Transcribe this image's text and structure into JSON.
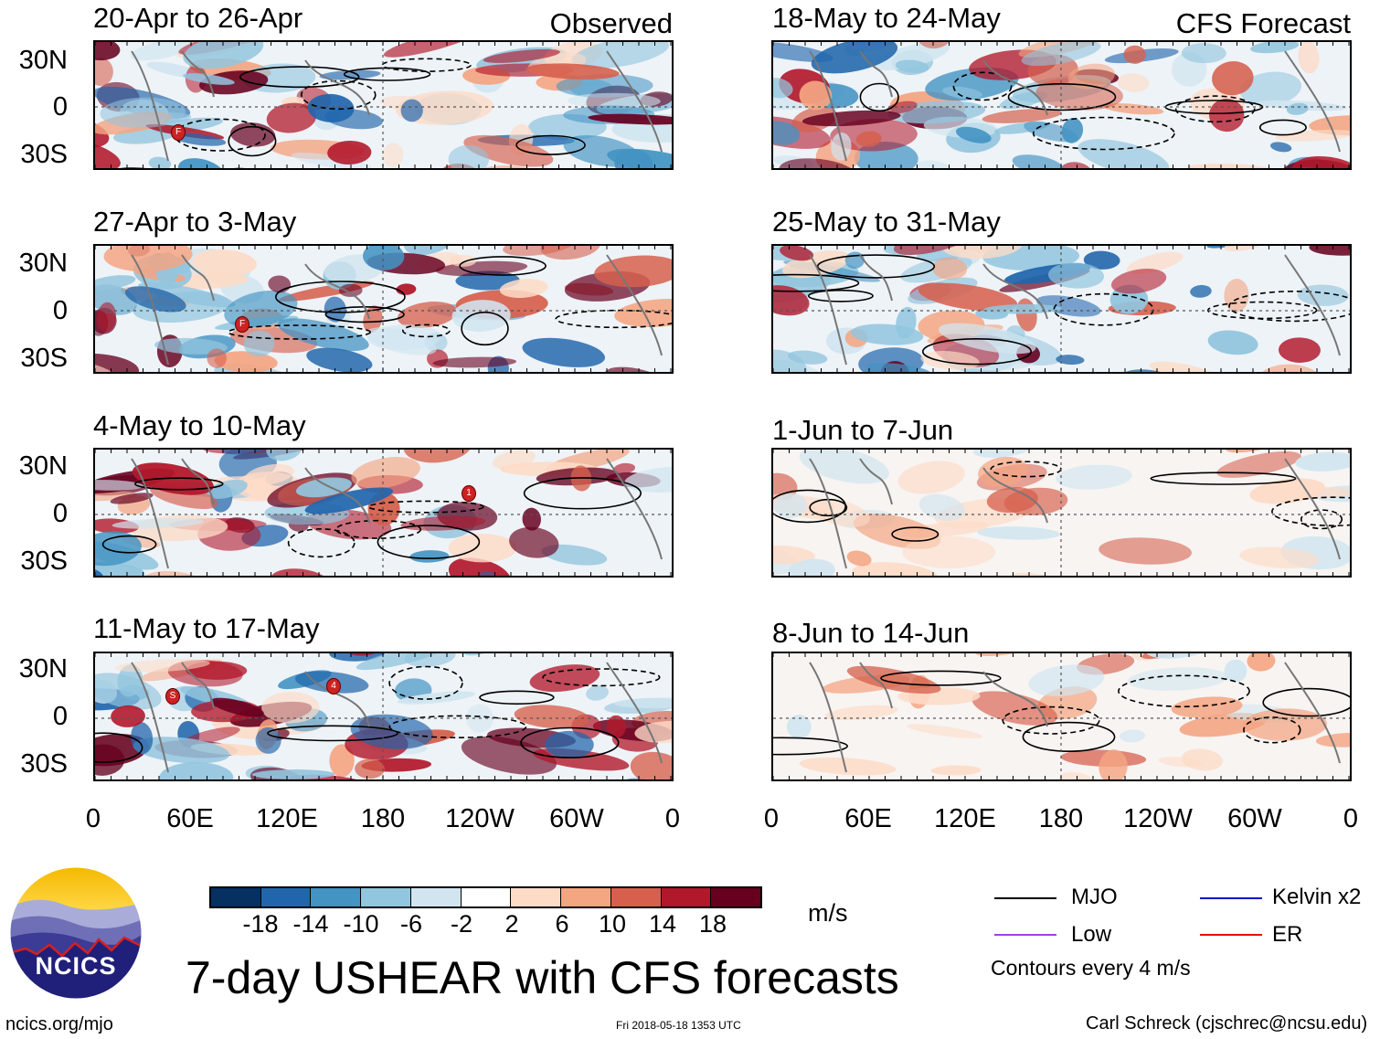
{
  "header": {
    "observed_label": "Observed",
    "forecast_label": "CFS Forecast"
  },
  "observed_panels": [
    {
      "title": "20-Apr to 26-Apr"
    },
    {
      "title": "27-Apr to 3-May"
    },
    {
      "title": "4-May to 10-May"
    },
    {
      "title": "11-May to 17-May"
    }
  ],
  "forecast_panels": [
    {
      "title": "18-May to 24-May"
    },
    {
      "title": "25-May to 31-May"
    },
    {
      "title": "1-Jun to 7-Jun"
    },
    {
      "title": "8-Jun to 14-Jun"
    }
  ],
  "axes": {
    "y_ticks": [
      "30N",
      "0",
      "30S"
    ],
    "x_ticks": [
      "0",
      "60E",
      "120E",
      "180",
      "120W",
      "60W",
      "0"
    ]
  },
  "colorbar": {
    "unit": "m/s",
    "labels": [
      "-18",
      "-14",
      "-10",
      "-6",
      "-2",
      "2",
      "6",
      "10",
      "14",
      "18"
    ],
    "colors": [
      "#053061",
      "#2166ac",
      "#4393c3",
      "#92c5de",
      "#d1e5f0",
      "#ffffff",
      "#fddbc7",
      "#f4a582",
      "#d6604d",
      "#b2182b",
      "#67001f"
    ]
  },
  "legend": {
    "items": [
      {
        "label": "MJO",
        "color": "#000000"
      },
      {
        "label": "Kelvin x2",
        "color": "#1010c8"
      },
      {
        "label": "Low",
        "color": "#a040e0"
      },
      {
        "label": "ER",
        "color": "#e01010"
      }
    ],
    "note": "Contours every 4 m/s"
  },
  "storm_markers": [
    {
      "panel": "20-Apr to 26-Apr",
      "label": "F"
    },
    {
      "panel": "27-Apr to 3-May",
      "label": "F"
    },
    {
      "panel": "4-May to 10-May",
      "label": "1"
    },
    {
      "panel": "11-May to 17-May",
      "label": "S"
    },
    {
      "panel": "11-May to 17-May",
      "label": "4"
    }
  ],
  "footer": {
    "title": "7-day USHEAR with CFS forecasts",
    "logo_text": "NCICS",
    "url": "ncics.org/mjo",
    "timestamp": "Fri 2018-05-18 1353 UTC",
    "credit": "Carl Schreck (cjschrec@ncsu.edu)"
  }
}
